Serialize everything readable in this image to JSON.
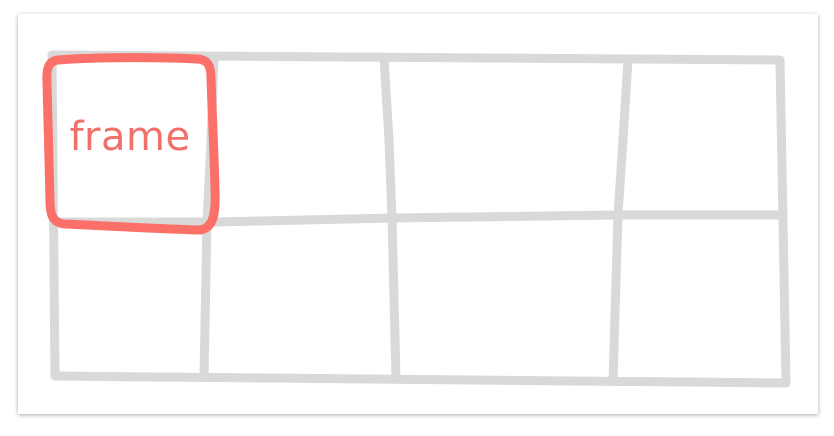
{
  "diagram": {
    "grid": {
      "rows": 2,
      "columns": 4,
      "stroke_color": "#d9d9d9"
    },
    "highlight": {
      "label": "frame",
      "color": "#fb7069",
      "cell": {
        "row": 1,
        "column": 1
      }
    }
  }
}
